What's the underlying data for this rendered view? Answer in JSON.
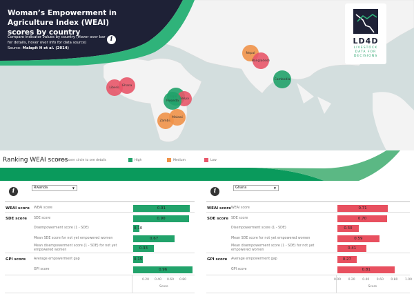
{
  "header": {
    "title": "Woman’s Empowerment in Agriculture Index (WEAI) scores by country",
    "subtitle": "Compare indicator values by country (Hover over bar for details, hover over info for data source)",
    "source_prefix": "Source: ",
    "source": "Malapit H et al. (2014)",
    "info_icon": "info-icon"
  },
  "logo": {
    "name": "LD4D",
    "tagline": [
      "LIVESTOCK",
      "DATA FOR",
      "DECISIONS"
    ]
  },
  "colors": {
    "high": "#22a36b",
    "medium": "#f0934a",
    "low": "#e8576a",
    "navy": "#1e2136",
    "map_water": "#d3dede",
    "map_land": "#f3f3f3"
  },
  "map": {
    "countries": [
      {
        "name": "Liberia",
        "level": "low"
      },
      {
        "name": "Ghana",
        "level": "low"
      },
      {
        "name": "Uganda",
        "level": "high"
      },
      {
        "name": "Kenya",
        "level": "low"
      },
      {
        "name": "Rwanda",
        "level": "high"
      },
      {
        "name": "Zambia",
        "level": "medium"
      },
      {
        "name": "Malawi",
        "level": "medium"
      },
      {
        "name": "Nepal",
        "level": "medium"
      },
      {
        "name": "Bangladesh",
        "level": "low"
      },
      {
        "name": "Cambodia",
        "level": "high"
      }
    ]
  },
  "ranking": {
    "title": "Ranking WEAI scores",
    "hint": "Hover over circle to see details",
    "legend": [
      {
        "label": "High",
        "level": "high"
      },
      {
        "label": "Medium",
        "level": "medium"
      },
      {
        "label": "Low",
        "level": "low"
      }
    ]
  },
  "panels": [
    {
      "country": "Rwanda",
      "color": "#22a36b",
      "groups": [
        "WEAI score",
        "SDE score",
        "GPI score"
      ],
      "rows": [
        {
          "label": "WEAI score",
          "value": 0.91
        },
        {
          "label": "SDE score",
          "value": 0.9
        },
        {
          "label": "Disempowerment score (1 - SDE)",
          "value": 0.1,
          "text": "0.10"
        },
        {
          "label": "Mean SDE score for not yet empowered women",
          "value": 0.67
        },
        {
          "label": "Mean disempowerment score (1 - SDE) for not yet empowered women",
          "value": 0.33
        },
        {
          "label": "Average empowerment gap",
          "value": 0.15
        },
        {
          "label": "GPI score",
          "value": 0.96
        }
      ],
      "ticks": [
        "0.20",
        "0.40",
        "0.60",
        "0.80"
      ],
      "axis_label": "Score"
    },
    {
      "country": "Ghana",
      "color": "#e8505f",
      "groups": [
        "WEAI score",
        "SDE score",
        "GPI score"
      ],
      "rows": [
        {
          "label": "WEAI score",
          "value": 0.71
        },
        {
          "label": "SDE score",
          "value": 0.7
        },
        {
          "label": "Disempowerment score (1 - SDE)",
          "value": 0.3
        },
        {
          "label": "Mean SDE score for not yet empowered women",
          "value": 0.59
        },
        {
          "label": "Mean disempowerment score (1 - SDE) for not yet empowered women",
          "value": 0.41
        },
        {
          "label": "Average empowerment gap",
          "value": 0.27
        },
        {
          "label": "GPI score",
          "value": 0.81
        }
      ],
      "ticks": [
        "0.00",
        "0.20",
        "0.40",
        "0.60",
        "0.80",
        "1.00"
      ],
      "axis_label": "Score"
    }
  ]
}
